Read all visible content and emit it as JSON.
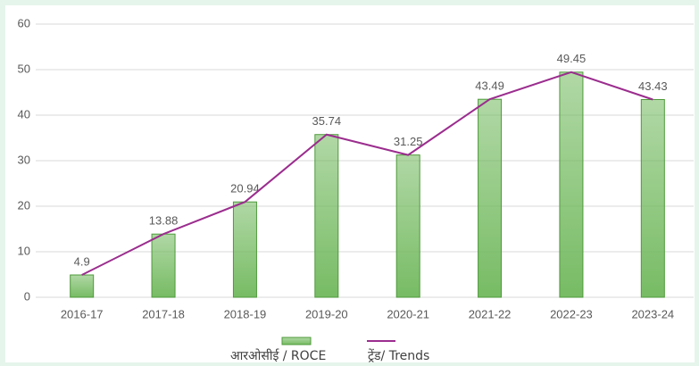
{
  "chart_data": {
    "type": "bar",
    "categories": [
      "2016-17",
      "2017-18",
      "2018-19",
      "2019-20",
      "2020-21",
      "2021-22",
      "2022-23",
      "2023-24"
    ],
    "series": [
      {
        "name": "आरओसीई / ROCE",
        "type": "bar",
        "color": "#70b85c",
        "values": [
          4.9,
          13.88,
          20.94,
          35.74,
          31.25,
          43.49,
          49.45,
          43.43
        ]
      },
      {
        "name": "ट्रेंड/ Trends",
        "type": "line",
        "color": "#9b2d8e",
        "values": [
          4.9,
          13.88,
          20.94,
          35.74,
          31.25,
          43.49,
          49.45,
          43.43
        ]
      }
    ],
    "ylim": [
      0,
      60
    ],
    "yticks": [
      0,
      10,
      20,
      30,
      40,
      50,
      60
    ],
    "grid": true,
    "legend": "bottom"
  }
}
